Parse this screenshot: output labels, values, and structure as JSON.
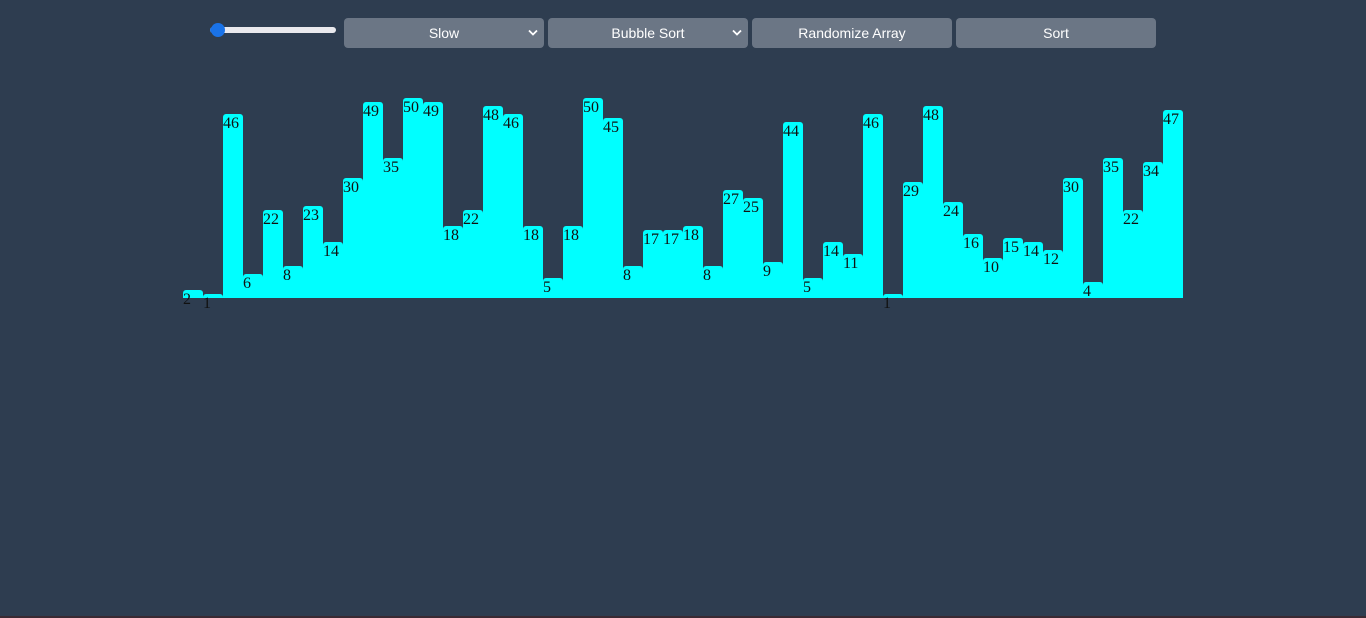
{
  "controls": {
    "speed": {
      "value": 0
    },
    "speed_select": {
      "selected": "Slow"
    },
    "algorithm_select": {
      "selected": "Bubble Sort"
    },
    "randomize_label": "Randomize Array",
    "sort_label": "Sort"
  },
  "colors": {
    "background": "#2e3d50",
    "bar": "#00ffff",
    "button": "#6b7685",
    "slider_accent": "#1a73e8"
  },
  "icons": {
    "select_arrow": "chevron-down-icon"
  },
  "array": [
    2,
    1,
    46,
    6,
    22,
    8,
    23,
    14,
    30,
    49,
    35,
    50,
    49,
    18,
    22,
    48,
    46,
    18,
    5,
    18,
    50,
    45,
    8,
    17,
    17,
    18,
    8,
    27,
    25,
    9,
    44,
    5,
    14,
    11,
    46,
    1,
    29,
    48,
    24,
    16,
    10,
    15,
    14,
    12,
    30,
    4,
    35,
    22,
    34,
    47
  ]
}
